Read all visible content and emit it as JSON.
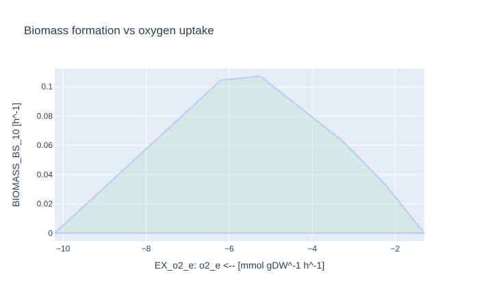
{
  "chart_data": {
    "type": "area",
    "title": "Biomass formation vs oxygen uptake",
    "xlabel": "EX_o2_e: o2_e <--  [mmol gDW^-1 h^-1]",
    "ylabel": "BIOMASS_BS_10 [h^-1]",
    "xlim": [
      -10.2,
      -1.3
    ],
    "ylim": [
      -0.0055,
      0.1125
    ],
    "x_ticks": [
      -10,
      -8,
      -6,
      -4,
      -2
    ],
    "x_tick_labels": [
      "−10",
      "−8",
      "−6",
      "−4",
      "−2"
    ],
    "y_ticks": [
      0,
      0.02,
      0.04,
      0.06,
      0.08,
      0.1
    ],
    "y_tick_labels": [
      "0",
      "0.02",
      "0.04",
      "0.06",
      "0.08",
      "0.1"
    ],
    "grid": true,
    "colors": {
      "plot_bg": "#e5ecf6",
      "grid": "#ffffff",
      "fill": "rgba(181,228,206,0.38)",
      "line": "#bccbf6"
    },
    "series": [
      {
        "upper": {
          "x": [
            -10.2,
            -6.2,
            -5.25,
            -3.25,
            -2.25,
            -1.3
          ],
          "y": [
            0,
            0.1045,
            0.1073,
            0.0625,
            0.0335,
            0
          ]
        },
        "lower": {
          "x": [
            -10.2,
            -1.3
          ],
          "y": [
            0,
            0
          ]
        }
      }
    ]
  }
}
